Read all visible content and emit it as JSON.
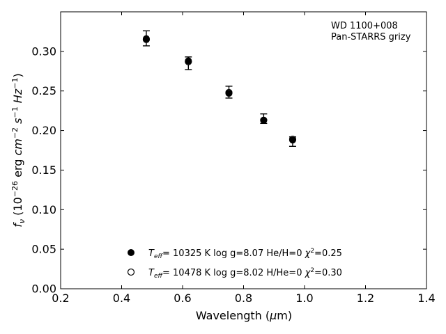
{
  "chart_data": {
    "type": "scatter",
    "xlabel": "Wavelength (μm)",
    "ylabel": "f_ν (10^-26 erg cm^-2 s^-1 Hz^-1)",
    "xlim": [
      0.2,
      1.4
    ],
    "ylim": [
      0.0,
      0.35
    ],
    "xticks": [
      "0.2",
      "0.4",
      "0.6",
      "0.8",
      "1.0",
      "1.2",
      "1.4"
    ],
    "yticks": [
      "0.00",
      "0.05",
      "0.10",
      "0.15",
      "0.20",
      "0.25",
      "0.30"
    ],
    "grid": false,
    "annotation": {
      "line1": "WD 1100+008",
      "line2": "Pan-STARRS grizy"
    },
    "observed": {
      "x": [
        0.481,
        0.619,
        0.752,
        0.866,
        0.961
      ],
      "y": [
        0.316,
        0.286,
        0.249,
        0.214,
        0.187
      ],
      "yerr_low": [
        0.009,
        0.009,
        0.008,
        0.005,
        0.007
      ],
      "yerr_high": [
        0.01,
        0.007,
        0.007,
        0.007,
        0.005
      ]
    },
    "series": [
      {
        "name": "Teff= 10325 K  log g=8.07  He/H=0  χ²=0.25",
        "marker": "filled-circle",
        "x": [
          0.481,
          0.619,
          0.752,
          0.866,
          0.961
        ],
        "y": [
          0.316,
          0.288,
          0.247,
          0.213,
          0.188
        ]
      },
      {
        "name": "Teff= 10478 K  log g=8.02  H/He=0  χ²=0.30",
        "marker": "open-circle",
        "x": [
          0.481,
          0.619,
          0.752,
          0.866,
          0.961
        ],
        "y": [
          0.315,
          0.287,
          0.248,
          0.213,
          0.189
        ]
      }
    ],
    "legend": {
      "placement": "lower-center",
      "entries": [
        {
          "teff": "10325",
          "logg": "8.07",
          "comp": "He/H=0",
          "chi2": "0.25"
        },
        {
          "teff": "10478",
          "logg": "8.02",
          "comp": "H/He=0",
          "chi2": "0.30"
        }
      ]
    }
  }
}
